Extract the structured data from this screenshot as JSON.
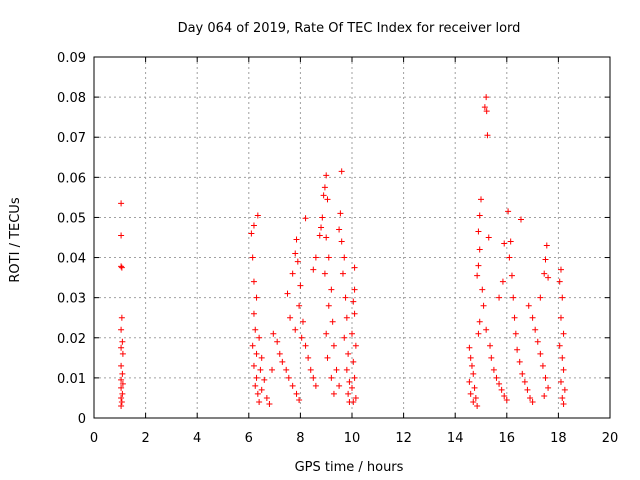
{
  "chart_data": {
    "type": "scatter",
    "title": "Day 064 of 2019, Rate Of TEC Index for receiver lord",
    "xlabel": "GPS time / hours",
    "ylabel": "ROTI / TECUs",
    "xlim": [
      0,
      20
    ],
    "ylim": [
      0,
      0.09
    ],
    "x_ticks": [
      "0",
      "2",
      "4",
      "6",
      "8",
      "10",
      "12",
      "14",
      "16",
      "18",
      "20"
    ],
    "y_ticks": [
      "0",
      "0.01",
      "0.02",
      "0.03",
      "0.04",
      "0.05",
      "0.06",
      "0.07",
      "0.08",
      "0.09"
    ],
    "grid": true,
    "legend": "none",
    "marker": "plus",
    "color": "#ff0000",
    "series": [
      {
        "points": [
          [
            1.05,
            0.0535
          ],
          [
            1.05,
            0.0455
          ],
          [
            1.05,
            0.0378
          ],
          [
            1.08,
            0.0375
          ],
          [
            1.08,
            0.025
          ],
          [
            1.05,
            0.022
          ],
          [
            1.1,
            0.019
          ],
          [
            1.05,
            0.0175
          ],
          [
            1.12,
            0.016
          ],
          [
            1.05,
            0.013
          ],
          [
            1.1,
            0.011
          ],
          [
            1.05,
            0.0095
          ],
          [
            1.12,
            0.0085
          ],
          [
            1.05,
            0.0075
          ],
          [
            1.1,
            0.006
          ],
          [
            1.05,
            0.005
          ],
          [
            1.08,
            0.004
          ],
          [
            1.05,
            0.003
          ],
          [
            6.1,
            0.046
          ],
          [
            6.2,
            0.048
          ],
          [
            6.35,
            0.0505
          ],
          [
            6.15,
            0.04
          ],
          [
            6.2,
            0.034
          ],
          [
            6.3,
            0.03
          ],
          [
            6.2,
            0.026
          ],
          [
            6.25,
            0.022
          ],
          [
            6.4,
            0.02
          ],
          [
            6.15,
            0.018
          ],
          [
            6.3,
            0.016
          ],
          [
            6.5,
            0.015
          ],
          [
            6.2,
            0.013
          ],
          [
            6.45,
            0.012
          ],
          [
            6.3,
            0.01
          ],
          [
            6.6,
            0.0095
          ],
          [
            6.25,
            0.008
          ],
          [
            6.5,
            0.007
          ],
          [
            6.35,
            0.006
          ],
          [
            6.7,
            0.005
          ],
          [
            6.4,
            0.004
          ],
          [
            6.8,
            0.0035
          ],
          [
            6.9,
            0.012
          ],
          [
            6.95,
            0.021
          ],
          [
            7.1,
            0.019
          ],
          [
            7.2,
            0.016
          ],
          [
            7.3,
            0.014
          ],
          [
            7.45,
            0.012
          ],
          [
            7.55,
            0.01
          ],
          [
            7.7,
            0.008
          ],
          [
            7.85,
            0.006
          ],
          [
            7.95,
            0.0045
          ],
          [
            7.5,
            0.031
          ],
          [
            7.7,
            0.036
          ],
          [
            7.8,
            0.041
          ],
          [
            7.85,
            0.0445
          ],
          [
            7.9,
            0.039
          ],
          [
            8.0,
            0.033
          ],
          [
            7.95,
            0.028
          ],
          [
            8.1,
            0.024
          ],
          [
            8.05,
            0.02
          ],
          [
            7.8,
            0.022
          ],
          [
            7.6,
            0.025
          ],
          [
            8.2,
            0.018
          ],
          [
            8.3,
            0.015
          ],
          [
            8.4,
            0.012
          ],
          [
            8.5,
            0.01
          ],
          [
            8.6,
            0.008
          ],
          [
            8.2,
            0.0498
          ],
          [
            8.5,
            0.037
          ],
          [
            8.6,
            0.04
          ],
          [
            8.75,
            0.0455
          ],
          [
            8.8,
            0.0475
          ],
          [
            8.85,
            0.05
          ],
          [
            8.9,
            0.0555
          ],
          [
            8.95,
            0.0575
          ],
          [
            9.0,
            0.0605
          ],
          [
            9.05,
            0.0545
          ],
          [
            9.0,
            0.045
          ],
          [
            9.1,
            0.04
          ],
          [
            8.95,
            0.036
          ],
          [
            9.2,
            0.032
          ],
          [
            9.1,
            0.028
          ],
          [
            9.25,
            0.024
          ],
          [
            9.0,
            0.021
          ],
          [
            9.3,
            0.018
          ],
          [
            9.05,
            0.015
          ],
          [
            9.4,
            0.012
          ],
          [
            9.2,
            0.01
          ],
          [
            9.5,
            0.008
          ],
          [
            9.3,
            0.006
          ],
          [
            9.6,
            0.0615
          ],
          [
            9.55,
            0.051
          ],
          [
            9.5,
            0.047
          ],
          [
            9.6,
            0.044
          ],
          [
            9.7,
            0.04
          ],
          [
            9.65,
            0.036
          ],
          [
            9.75,
            0.03
          ],
          [
            9.8,
            0.025
          ],
          [
            9.7,
            0.02
          ],
          [
            9.85,
            0.016
          ],
          [
            9.8,
            0.012
          ],
          [
            9.9,
            0.009
          ],
          [
            9.85,
            0.006
          ],
          [
            9.9,
            0.004
          ],
          [
            10.05,
            0.029
          ],
          [
            10.1,
            0.026
          ],
          [
            10.0,
            0.021
          ],
          [
            10.15,
            0.018
          ],
          [
            10.05,
            0.014
          ],
          [
            10.1,
            0.01
          ],
          [
            10.0,
            0.0075
          ],
          [
            10.15,
            0.005
          ],
          [
            10.05,
            0.004
          ],
          [
            10.1,
            0.0375
          ],
          [
            10.1,
            0.032
          ],
          [
            14.55,
            0.0175
          ],
          [
            14.6,
            0.015
          ],
          [
            14.65,
            0.013
          ],
          [
            14.7,
            0.011
          ],
          [
            14.55,
            0.009
          ],
          [
            14.75,
            0.0075
          ],
          [
            14.6,
            0.006
          ],
          [
            14.8,
            0.005
          ],
          [
            14.7,
            0.004
          ],
          [
            14.85,
            0.003
          ],
          [
            14.9,
            0.021
          ],
          [
            14.95,
            0.024
          ],
          [
            14.85,
            0.0355
          ],
          [
            14.9,
            0.038
          ],
          [
            14.95,
            0.042
          ],
          [
            14.9,
            0.0465
          ],
          [
            15.0,
            0.0545
          ],
          [
            14.95,
            0.0505
          ],
          [
            15.05,
            0.032
          ],
          [
            15.1,
            0.028
          ],
          [
            15.15,
            0.0775
          ],
          [
            15.2,
            0.08
          ],
          [
            15.22,
            0.0765
          ],
          [
            15.25,
            0.0705
          ],
          [
            15.3,
            0.045
          ],
          [
            15.2,
            0.022
          ],
          [
            15.35,
            0.018
          ],
          [
            15.4,
            0.015
          ],
          [
            15.5,
            0.012
          ],
          [
            15.6,
            0.01
          ],
          [
            15.7,
            0.0085
          ],
          [
            15.8,
            0.007
          ],
          [
            15.9,
            0.0055
          ],
          [
            16.0,
            0.0045
          ],
          [
            15.7,
            0.03
          ],
          [
            15.85,
            0.034
          ],
          [
            15.9,
            0.0435
          ],
          [
            16.05,
            0.0515
          ],
          [
            16.1,
            0.04
          ],
          [
            16.15,
            0.044
          ],
          [
            16.2,
            0.0355
          ],
          [
            16.25,
            0.03
          ],
          [
            16.3,
            0.025
          ],
          [
            16.35,
            0.021
          ],
          [
            16.4,
            0.017
          ],
          [
            16.5,
            0.014
          ],
          [
            16.6,
            0.011
          ],
          [
            16.7,
            0.009
          ],
          [
            16.55,
            0.0495
          ],
          [
            16.8,
            0.007
          ],
          [
            16.9,
            0.005
          ],
          [
            17.0,
            0.004
          ],
          [
            16.85,
            0.028
          ],
          [
            17.0,
            0.025
          ],
          [
            17.1,
            0.022
          ],
          [
            17.2,
            0.019
          ],
          [
            17.3,
            0.016
          ],
          [
            17.4,
            0.013
          ],
          [
            17.3,
            0.03
          ],
          [
            17.45,
            0.036
          ],
          [
            17.5,
            0.0395
          ],
          [
            17.55,
            0.043
          ],
          [
            17.6,
            0.035
          ],
          [
            17.5,
            0.01
          ],
          [
            17.6,
            0.0075
          ],
          [
            17.45,
            0.0055
          ],
          [
            18.05,
            0.034
          ],
          [
            18.1,
            0.037
          ],
          [
            18.15,
            0.03
          ],
          [
            18.1,
            0.025
          ],
          [
            18.2,
            0.021
          ],
          [
            18.05,
            0.018
          ],
          [
            18.15,
            0.015
          ],
          [
            18.2,
            0.012
          ],
          [
            18.1,
            0.009
          ],
          [
            18.25,
            0.007
          ],
          [
            18.15,
            0.005
          ],
          [
            18.2,
            0.0035
          ]
        ]
      }
    ]
  }
}
